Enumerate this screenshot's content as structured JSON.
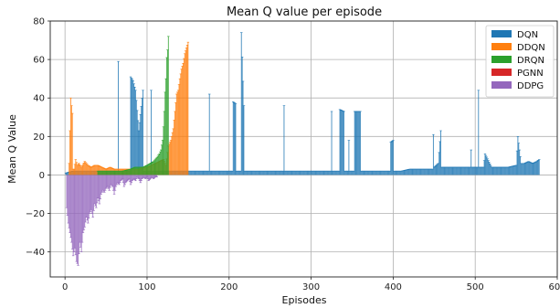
{
  "chart_data": {
    "type": "bar",
    "title": "Mean Q value per episode",
    "xlabel": "Episodes",
    "ylabel": "Mean Q Value",
    "xlim": [
      -18,
      600
    ],
    "ylim": [
      -53,
      80
    ],
    "xticks": [
      0,
      100,
      200,
      300,
      400,
      500,
      600
    ],
    "yticks": [
      -40,
      -20,
      0,
      20,
      40,
      60,
      80
    ],
    "grid": true,
    "legend_position": "top-right",
    "series": [
      {
        "name": "DQN",
        "color": "#1f77b4",
        "points": [
          [
            1,
            1
          ],
          [
            5,
            1.5
          ],
          [
            10,
            2
          ],
          [
            20,
            2
          ],
          [
            30,
            2
          ],
          [
            40,
            2
          ],
          [
            50,
            2
          ],
          [
            60,
            2
          ],
          [
            65,
            59
          ],
          [
            70,
            2
          ],
          [
            80,
            51
          ],
          [
            83,
            49
          ],
          [
            86,
            44
          ],
          [
            90,
            23
          ],
          [
            95,
            44
          ],
          [
            100,
            2
          ],
          [
            105,
            44
          ],
          [
            110,
            2
          ],
          [
            120,
            2
          ],
          [
            130,
            2
          ],
          [
            140,
            2
          ],
          [
            150,
            2
          ],
          [
            160,
            2
          ],
          [
            170,
            2
          ],
          [
            176,
            42
          ],
          [
            180,
            2
          ],
          [
            190,
            2
          ],
          [
            200,
            2
          ],
          [
            205,
            38
          ],
          [
            208,
            37
          ],
          [
            210,
            2
          ],
          [
            215,
            74
          ],
          [
            218,
            36
          ],
          [
            220,
            2
          ],
          [
            230,
            2
          ],
          [
            240,
            2
          ],
          [
            250,
            2
          ],
          [
            260,
            2
          ],
          [
            267,
            36
          ],
          [
            270,
            2
          ],
          [
            280,
            2
          ],
          [
            290,
            2
          ],
          [
            300,
            2
          ],
          [
            310,
            2
          ],
          [
            320,
            2
          ],
          [
            325,
            33
          ],
          [
            330,
            2
          ],
          [
            335,
            34
          ],
          [
            340,
            33
          ],
          [
            343,
            2
          ],
          [
            346,
            18
          ],
          [
            350,
            2
          ],
          [
            353,
            33
          ],
          [
            360,
            33
          ],
          [
            370,
            2
          ],
          [
            380,
            2
          ],
          [
            390,
            2
          ],
          [
            397,
            17
          ],
          [
            400,
            18
          ],
          [
            410,
            2
          ],
          [
            420,
            3
          ],
          [
            430,
            3
          ],
          [
            440,
            3
          ],
          [
            449,
            21
          ],
          [
            450,
            4
          ],
          [
            455,
            6
          ],
          [
            458,
            23
          ],
          [
            460,
            4
          ],
          [
            470,
            4
          ],
          [
            480,
            4
          ],
          [
            490,
            4
          ],
          [
            495,
            13
          ],
          [
            500,
            4
          ],
          [
            504,
            44
          ],
          [
            510,
            4
          ],
          [
            512,
            11
          ],
          [
            520,
            4
          ],
          [
            530,
            4
          ],
          [
            540,
            4
          ],
          [
            550,
            5
          ],
          [
            552,
            20
          ],
          [
            556,
            6
          ],
          [
            560,
            6
          ],
          [
            565,
            7
          ],
          [
            570,
            6
          ],
          [
            575,
            7
          ],
          [
            578,
            8
          ]
        ]
      },
      {
        "name": "DDQN",
        "color": "#ff7f0e",
        "points": [
          [
            5,
            6
          ],
          [
            7,
            40
          ],
          [
            9,
            32
          ],
          [
            11,
            3
          ],
          [
            13,
            8
          ],
          [
            15,
            5
          ],
          [
            17,
            6
          ],
          [
            20,
            4
          ],
          [
            24,
            7
          ],
          [
            28,
            5
          ],
          [
            32,
            4
          ],
          [
            36,
            5
          ],
          [
            40,
            5
          ],
          [
            45,
            4
          ],
          [
            50,
            3
          ],
          [
            55,
            4
          ],
          [
            60,
            3
          ],
          [
            65,
            3
          ],
          [
            70,
            3
          ],
          [
            75,
            3
          ],
          [
            80,
            3
          ],
          [
            85,
            3
          ],
          [
            90,
            3
          ],
          [
            95,
            4
          ],
          [
            100,
            4
          ],
          [
            105,
            5
          ],
          [
            110,
            6
          ],
          [
            115,
            7
          ],
          [
            120,
            8
          ],
          [
            123,
            5
          ],
          [
            126,
            15
          ],
          [
            129,
            18
          ],
          [
            132,
            24
          ],
          [
            134,
            33
          ],
          [
            136,
            42
          ],
          [
            138,
            44
          ],
          [
            140,
            50
          ],
          [
            142,
            55
          ],
          [
            144,
            58
          ],
          [
            146,
            63
          ],
          [
            148,
            66
          ],
          [
            150,
            69
          ]
        ]
      },
      {
        "name": "DRQN",
        "color": "#2ca02c",
        "points": [
          [
            40,
            2
          ],
          [
            50,
            2
          ],
          [
            60,
            2
          ],
          [
            70,
            2
          ],
          [
            80,
            3
          ],
          [
            85,
            4
          ],
          [
            90,
            4
          ],
          [
            95,
            4
          ],
          [
            100,
            5
          ],
          [
            104,
            6
          ],
          [
            108,
            7
          ],
          [
            112,
            9
          ],
          [
            115,
            11
          ],
          [
            117,
            13
          ],
          [
            119,
            18
          ],
          [
            120,
            25
          ],
          [
            121,
            33
          ],
          [
            122,
            43
          ],
          [
            123,
            50
          ],
          [
            124,
            61
          ],
          [
            125,
            65
          ],
          [
            126,
            72
          ]
        ]
      },
      {
        "name": "PGNN",
        "color": "#d62728",
        "points": []
      },
      {
        "name": "DDPG",
        "color": "#9467bd",
        "points": [
          [
            2,
            -17
          ],
          [
            4,
            -25
          ],
          [
            6,
            -30
          ],
          [
            8,
            -35
          ],
          [
            10,
            -42
          ],
          [
            12,
            -38
          ],
          [
            14,
            -45
          ],
          [
            16,
            -47
          ],
          [
            18,
            -35
          ],
          [
            20,
            -40
          ],
          [
            22,
            -30
          ],
          [
            24,
            -27
          ],
          [
            26,
            -22
          ],
          [
            28,
            -25
          ],
          [
            30,
            -20
          ],
          [
            32,
            -18
          ],
          [
            34,
            -22
          ],
          [
            36,
            -15
          ],
          [
            38,
            -17
          ],
          [
            40,
            -12
          ],
          [
            42,
            -15
          ],
          [
            44,
            -10
          ],
          [
            46,
            -8
          ],
          [
            48,
            -9
          ],
          [
            50,
            -7
          ],
          [
            52,
            -6
          ],
          [
            54,
            -8
          ],
          [
            56,
            -5
          ],
          [
            58,
            -6
          ],
          [
            60,
            -10
          ],
          [
            62,
            -6
          ],
          [
            64,
            -4
          ],
          [
            66,
            -5
          ],
          [
            68,
            -3
          ],
          [
            70,
            -2
          ],
          [
            72,
            -6
          ],
          [
            74,
            -4
          ],
          [
            76,
            -3
          ],
          [
            78,
            -2
          ],
          [
            80,
            -5
          ],
          [
            82,
            -3
          ],
          [
            84,
            -2
          ],
          [
            86,
            -3
          ],
          [
            88,
            -1
          ],
          [
            90,
            -2
          ],
          [
            92,
            -4
          ],
          [
            94,
            -2
          ],
          [
            96,
            -1
          ],
          [
            98,
            -2
          ],
          [
            100,
            -1
          ],
          [
            102,
            -3
          ],
          [
            104,
            -2
          ],
          [
            106,
            -1
          ],
          [
            108,
            -2
          ],
          [
            110,
            -1
          ],
          [
            112,
            -1
          ]
        ]
      }
    ]
  }
}
